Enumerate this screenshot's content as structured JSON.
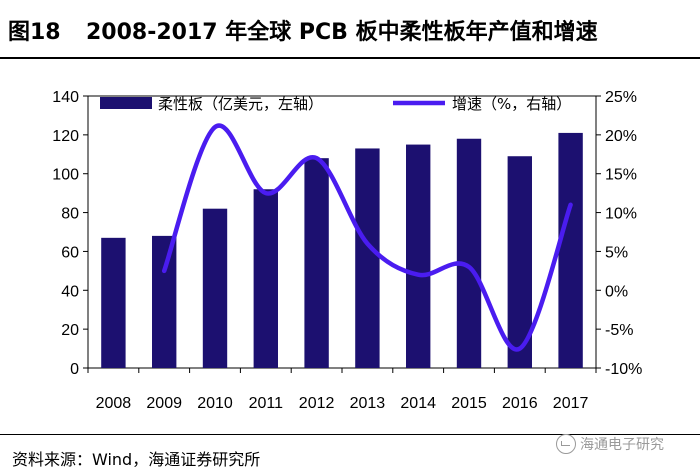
{
  "figure": {
    "label": "图18",
    "title": "2008-2017 年全球 PCB 板中柔性板年产值和增速"
  },
  "source": "资料来源：Wind，海通证券研究所",
  "watermark": "海通电子研究",
  "colors": {
    "bar": "#1c1070",
    "line": "#4a1cf0"
  },
  "chart_data": {
    "type": "bar",
    "categories": [
      "2008",
      "2009",
      "2010",
      "2011",
      "2012",
      "2013",
      "2014",
      "2015",
      "2016",
      "2017"
    ],
    "series": [
      {
        "name": "柔性板（亿美元，左轴）",
        "type": "bar",
        "axis": "left",
        "values": [
          67,
          68,
          82,
          92,
          108,
          113,
          115,
          118,
          109,
          121
        ]
      },
      {
        "name": "增速（%，右轴）",
        "type": "line",
        "axis": "right",
        "values": [
          null,
          2.5,
          21.0,
          12.5,
          17.0,
          6.0,
          2.0,
          3.0,
          -7.5,
          11.0
        ]
      }
    ],
    "y_left": {
      "ylim": [
        0,
        140
      ],
      "ticks": [
        "0",
        "20",
        "40",
        "60",
        "80",
        "100",
        "120",
        "140"
      ]
    },
    "y_right": {
      "ylim": [
        -10,
        25
      ],
      "ticks": [
        "-10%",
        "-5%",
        "0%",
        "5%",
        "10%",
        "15%",
        "20%",
        "25%"
      ]
    },
    "legend_position": "top",
    "grid": false
  }
}
